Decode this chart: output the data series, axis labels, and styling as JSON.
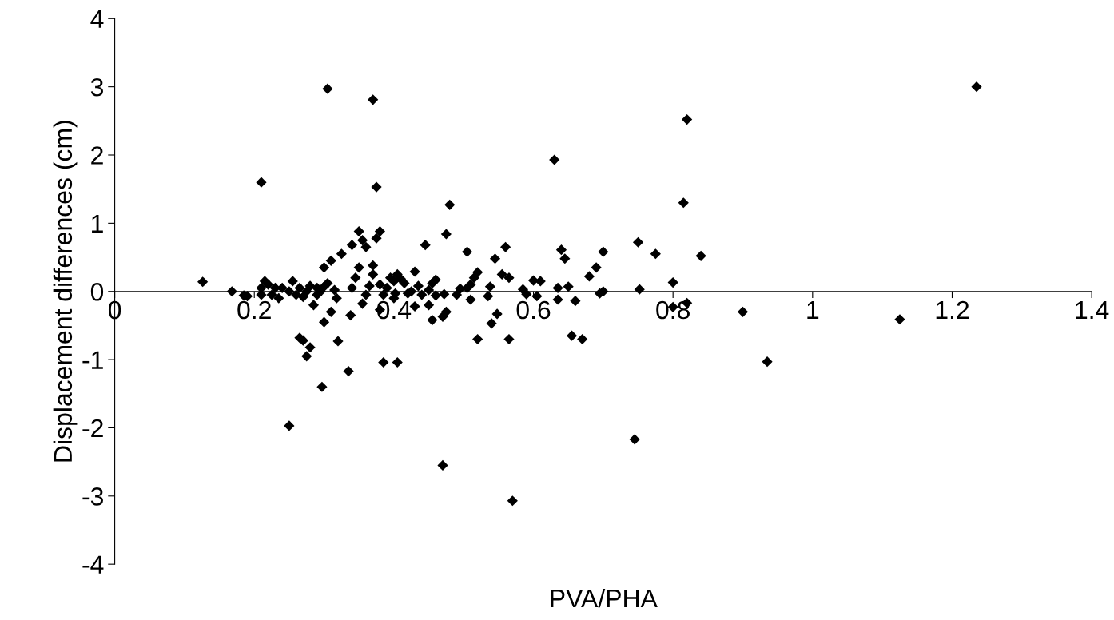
{
  "chart_data": {
    "type": "scatter",
    "xlabel": "PVA/PHA",
    "ylabel": "Displacement differences (cm)",
    "xlim": [
      0,
      1.4
    ],
    "xticks": [
      0,
      0.2,
      0.4,
      0.6,
      0.8,
      1,
      1.2,
      1.4
    ],
    "ylim": [
      -4,
      4
    ],
    "yticks": [
      -4,
      -3,
      -2,
      -1,
      0,
      1,
      2,
      3,
      4
    ],
    "grid": false,
    "marker": "diamond",
    "series": [
      {
        "color": "#000000",
        "x": [
          0.21,
          0.305,
          0.37,
          0.375,
          0.63,
          0.82,
          0.815,
          1.235,
          0.48,
          0.25,
          0.47,
          0.57,
          0.745,
          0.935,
          1.125,
          0.9,
          0.84,
          0.775,
          0.75,
          0.752,
          0.8,
          0.8,
          0.82,
          0.7,
          0.69,
          0.68,
          0.695,
          0.7,
          0.67,
          0.655,
          0.66,
          0.645,
          0.64,
          0.65,
          0.635,
          0.635,
          0.61,
          0.6,
          0.605,
          0.59,
          0.585,
          0.56,
          0.565,
          0.555,
          0.548,
          0.54,
          0.545,
          0.538,
          0.535,
          0.52,
          0.515,
          0.51,
          0.51,
          0.505,
          0.505,
          0.52,
          0.565,
          0.495,
          0.475,
          0.472,
          0.47,
          0.46,
          0.455,
          0.45,
          0.45,
          0.44,
          0.445,
          0.435,
          0.43,
          0.43,
          0.425,
          0.42,
          0.415,
          0.41,
          0.405,
          0.402,
          0.4,
          0.4,
          0.395,
          0.39,
          0.385,
          0.38,
          0.38,
          0.375,
          0.37,
          0.37,
          0.365,
          0.36,
          0.36,
          0.355,
          0.35,
          0.35,
          0.345,
          0.34,
          0.34,
          0.338,
          0.335,
          0.355,
          0.38,
          0.385,
          0.405,
          0.455,
          0.46,
          0.325,
          0.31,
          0.3,
          0.305,
          0.3,
          0.295,
          0.29,
          0.29,
          0.285,
          0.28,
          0.275,
          0.27,
          0.265,
          0.26,
          0.255,
          0.25,
          0.24,
          0.235,
          0.23,
          0.225,
          0.22,
          0.215,
          0.21,
          0.21,
          0.315,
          0.318,
          0.31,
          0.3,
          0.32,
          0.297,
          0.265,
          0.27,
          0.275,
          0.28,
          0.126,
          0.168,
          0.185,
          0.19,
          0.49,
          0.475
        ],
        "values": [
          1.6,
          2.97,
          2.81,
          1.53,
          1.93,
          2.52,
          1.3,
          3.0,
          1.27,
          -1.97,
          -2.55,
          -3.07,
          -2.17,
          -1.03,
          -0.41,
          -0.3,
          0.52,
          0.55,
          0.72,
          0.03,
          0.13,
          -0.23,
          -0.17,
          0.58,
          0.35,
          0.22,
          -0.03,
          0.0,
          -0.7,
          -0.65,
          -0.14,
          0.48,
          0.61,
          0.07,
          -0.12,
          0.05,
          0.15,
          0.16,
          -0.07,
          -0.04,
          0.03,
          0.65,
          0.2,
          0.25,
          -0.33,
          -0.47,
          0.48,
          0.07,
          -0.07,
          0.28,
          0.2,
          0.1,
          -0.12,
          0.05,
          0.58,
          -0.7,
          -0.7,
          0.04,
          0.84,
          -0.04,
          -0.37,
          0.17,
          0.12,
          0.02,
          -0.2,
          -0.05,
          0.68,
          0.08,
          -0.22,
          0.29,
          0.0,
          -0.03,
          0.12,
          0.18,
          0.25,
          -0.03,
          0.15,
          -0.1,
          0.2,
          0.05,
          -0.05,
          0.1,
          0.88,
          0.78,
          0.38,
          0.25,
          0.08,
          -0.05,
          0.65,
          0.75,
          0.35,
          0.88,
          0.2,
          0.68,
          0.05,
          -0.35,
          -1.17,
          -0.18,
          -0.27,
          -1.04,
          -1.04,
          -0.42,
          -0.06,
          0.55,
          0.45,
          0.35,
          0.12,
          0.07,
          0.0,
          -0.05,
          0.05,
          -0.2,
          0.08,
          0.0,
          -0.08,
          0.05,
          -0.05,
          0.15,
          0.0,
          0.05,
          -0.1,
          0.05,
          -0.05,
          0.1,
          0.15,
          -0.05,
          0.05,
          0.02,
          -0.1,
          -0.3,
          -0.45,
          -0.73,
          -1.4,
          -0.68,
          -0.72,
          -0.95,
          -0.82,
          0.14,
          0.0,
          -0.06,
          -0.07,
          -0.05,
          -0.3
        ]
      }
    ]
  }
}
